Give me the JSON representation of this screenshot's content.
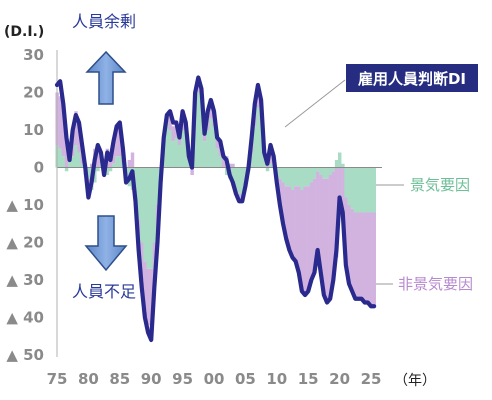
{
  "chart_data": {
    "type": "area",
    "title": "",
    "ylabel": "(D.I.)",
    "xlabel": "（年）",
    "ylim": [
      -50,
      30
    ],
    "xlim": [
      1975,
      2025.8
    ],
    "yticks": [
      30,
      20,
      10,
      0,
      -10,
      -20,
      -30,
      -40,
      -50
    ],
    "ytick_labels": [
      "30",
      "20",
      "10",
      "0",
      "▲ 10",
      "▲ 20",
      "▲ 30",
      "▲ 40",
      "▲ 50"
    ],
    "xticks": [
      1975,
      1980,
      1985,
      1990,
      1995,
      2000,
      2005,
      2010,
      2015,
      2020,
      2025
    ],
    "xtick_labels": [
      "75",
      "80",
      "85",
      "90",
      "95",
      "00",
      "05",
      "10",
      "15",
      "20",
      "25"
    ],
    "x": [
      1975.0,
      1975.5,
      1976.0,
      1976.5,
      1977.0,
      1977.5,
      1978.0,
      1978.5,
      1979.0,
      1979.5,
      1980.0,
      1980.5,
      1981.0,
      1981.5,
      1982.0,
      1982.5,
      1983.0,
      1983.5,
      1984.0,
      1984.5,
      1985.0,
      1985.5,
      1986.0,
      1986.5,
      1987.0,
      1987.5,
      1988.0,
      1988.5,
      1989.0,
      1989.5,
      1990.0,
      1990.5,
      1991.0,
      1991.5,
      1992.0,
      1992.5,
      1993.0,
      1993.5,
      1994.0,
      1994.5,
      1995.0,
      1995.5,
      1996.0,
      1996.5,
      1997.0,
      1997.5,
      1998.0,
      1998.5,
      1999.0,
      1999.5,
      2000.0,
      2000.5,
      2001.0,
      2001.5,
      2002.0,
      2002.5,
      2003.0,
      2003.5,
      2004.0,
      2004.5,
      2005.0,
      2005.5,
      2006.0,
      2006.5,
      2007.0,
      2007.5,
      2008.0,
      2008.5,
      2009.0,
      2009.5,
      2010.0,
      2010.5,
      2011.0,
      2011.5,
      2012.0,
      2012.5,
      2013.0,
      2013.5,
      2014.0,
      2014.5,
      2015.0,
      2015.5,
      2016.0,
      2016.5,
      2017.0,
      2017.5,
      2018.0,
      2018.5,
      2019.0,
      2019.5,
      2020.0,
      2020.5,
      2021.0,
      2021.5,
      2022.0,
      2022.5,
      2023.0,
      2023.5,
      2024.0,
      2024.5,
      2025.0,
      2025.5
    ],
    "series": [
      {
        "name": "雇用人員判断DI",
        "type": "line",
        "color": "#2a2a8e",
        "values": [
          22,
          23,
          17,
          8,
          2,
          10,
          14,
          12,
          6,
          0,
          -8,
          -4,
          2,
          6,
          4,
          -2,
          4,
          2,
          7,
          11,
          12,
          5,
          -4,
          -3,
          -1,
          -9,
          -22,
          -32,
          -40,
          -44,
          -46,
          -32,
          -20,
          -4,
          8,
          14,
          15,
          12,
          12,
          8,
          15,
          12,
          3,
          0,
          20,
          24,
          21,
          9,
          15,
          18,
          15,
          8,
          7,
          3,
          2,
          -2,
          -4,
          -7,
          -9,
          -9,
          -5,
          0,
          8,
          17,
          22,
          18,
          4,
          1,
          6,
          3,
          -4,
          -10,
          -15,
          -19,
          -22,
          -24,
          -25,
          -28,
          -33,
          -34,
          -33,
          -30,
          -28,
          -22,
          -28,
          -34,
          -36,
          -35,
          -30,
          -22,
          -8,
          -12,
          -26,
          -31,
          -33,
          -35,
          -35,
          -35,
          -36,
          -36,
          -37,
          -37
        ]
      },
      {
        "name": "景気要因",
        "type": "area",
        "color": "#a9dcc4",
        "values": [
          6,
          5,
          3,
          -1,
          2,
          3,
          6,
          4,
          1,
          -2,
          -3,
          -6,
          -4,
          -1,
          1,
          -2,
          -2,
          -1,
          1,
          3,
          3,
          1,
          -4,
          -5,
          -6,
          -9,
          -14,
          -20,
          -25,
          -27,
          -27,
          -20,
          -10,
          0,
          7,
          12,
          10,
          7,
          8,
          6,
          10,
          10,
          3,
          2,
          16,
          20,
          18,
          7,
          10,
          13,
          11,
          5,
          3,
          0,
          -2,
          -3,
          -5,
          -6,
          -7,
          -7,
          -4,
          -1,
          4,
          11,
          16,
          13,
          3,
          -1,
          1,
          0,
          -2,
          -3,
          -4,
          -5,
          -5,
          -6,
          -5,
          -5,
          -6,
          -5,
          -5,
          -4,
          -3,
          -1,
          -2,
          -3,
          -3,
          -2,
          -1,
          2,
          4,
          1,
          -8,
          -10,
          -11,
          -12,
          -12,
          -12,
          -12,
          -12,
          -12,
          -12
        ]
      },
      {
        "name": "非景気要因",
        "type": "area",
        "color": "#d2b3e0",
        "values": [
          14,
          14,
          12,
          7,
          1,
          6,
          9,
          8,
          4,
          1,
          -4,
          1,
          5,
          6,
          3,
          0,
          5,
          2,
          5,
          8,
          8,
          4,
          0,
          2,
          4,
          0,
          -7,
          -10,
          -13,
          -15,
          -16,
          -11,
          -8,
          -3,
          1,
          2,
          4,
          4,
          4,
          2,
          4,
          2,
          0,
          -2,
          3,
          4,
          3,
          2,
          4,
          5,
          4,
          3,
          4,
          3,
          3,
          1,
          1,
          -1,
          -2,
          -2,
          -1,
          1,
          4,
          6,
          6,
          5,
          1,
          2,
          4,
          3,
          -2,
          -7,
          -11,
          -14,
          -17,
          -18,
          -20,
          -23,
          -27,
          -29,
          -28,
          -26,
          -25,
          -21,
          -26,
          -31,
          -33,
          -33,
          -29,
          -24,
          -12,
          -13,
          -18,
          -21,
          -22,
          -23,
          -23,
          -23,
          -24,
          -24,
          -25,
          -25
        ]
      }
    ],
    "legend": "direct labels on the right side",
    "grid": false,
    "annotations": {
      "surplus": "人員余剰",
      "shortage": "人員不足"
    }
  }
}
